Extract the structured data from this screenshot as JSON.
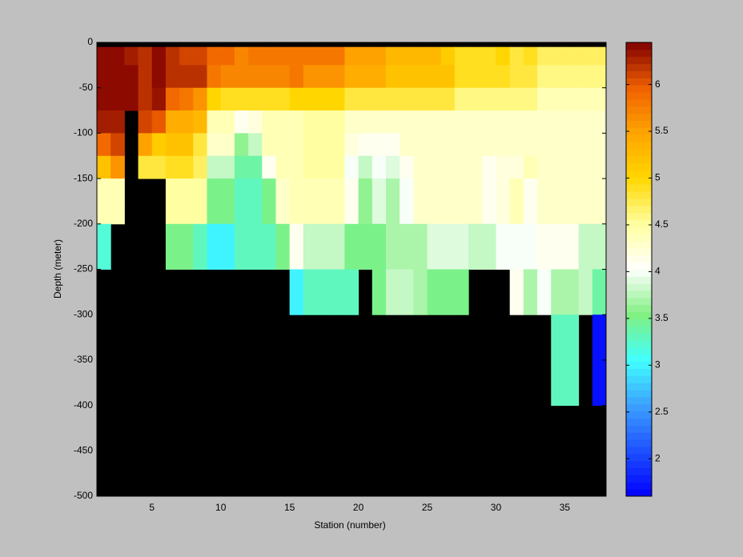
{
  "chart_data": {
    "type": "heatmap",
    "xlabel": "Station (number)",
    "ylabel": "Depth (meter)",
    "xlim": [
      1,
      38
    ],
    "ylim": [
      -500,
      0
    ],
    "xticks": [
      5,
      10,
      15,
      20,
      25,
      30,
      35
    ],
    "yticks": [
      0,
      -50,
      -100,
      -150,
      -200,
      -250,
      -300,
      -350,
      -400,
      -450,
      -500
    ],
    "clim": [
      1.6,
      6.45
    ],
    "cticks": [
      2,
      2.5,
      3,
      3.5,
      4,
      4.5,
      5,
      5.5,
      6
    ],
    "colormap": [
      "#0000ff",
      "#1e50ff",
      "#3ca0ff",
      "#40ffff",
      "#80f080",
      "#ffffff",
      "#ffffa0",
      "#ffd700",
      "#ffa500",
      "#f06000",
      "#800000"
    ],
    "nan_color": "#000000",
    "x_edges": [
      1,
      2,
      3,
      4,
      5,
      6,
      7,
      8,
      9,
      10,
      11,
      12,
      13,
      14,
      15,
      16,
      17,
      18,
      19,
      20,
      21,
      22,
      23,
      24,
      25,
      26,
      27,
      28,
      29,
      30,
      31,
      32,
      33,
      34,
      35,
      36,
      37,
      38
    ],
    "y_edges": [
      -5,
      -25,
      -50,
      -75,
      -100,
      -125,
      -150,
      -175,
      -200,
      -250,
      -300,
      -350,
      -400
    ],
    "values": [
      [
        6.4,
        6.4,
        6.3,
        6.2,
        6.4,
        6.2,
        6.1,
        6.1,
        5.9,
        5.9,
        5.7,
        5.8,
        5.8,
        5.8,
        5.8,
        5.8,
        5.8,
        5.8,
        5.5,
        5.5,
        5.5,
        5.3,
        5.3,
        5.3,
        5.3,
        5.1,
        4.9,
        4.9,
        4.9,
        5.0,
        4.8,
        4.9,
        4.7,
        4.7,
        4.7,
        4.7,
        4.7
      ],
      [
        6.4,
        6.4,
        6.4,
        6.2,
        6.4,
        6.2,
        6.2,
        6.2,
        5.8,
        5.7,
        5.7,
        5.7,
        5.7,
        5.7,
        5.8,
        5.6,
        5.6,
        5.6,
        5.4,
        5.4,
        5.4,
        5.2,
        5.2,
        5.2,
        5.2,
        5.2,
        4.9,
        4.9,
        4.9,
        4.9,
        4.8,
        4.8,
        4.6,
        4.6,
        4.6,
        4.6,
        4.6
      ],
      [
        6.4,
        6.4,
        6.4,
        6.2,
        6.35,
        5.9,
        5.8,
        5.6,
        5.0,
        4.9,
        4.9,
        4.9,
        4.9,
        4.9,
        5.0,
        5.0,
        5.0,
        5.0,
        4.8,
        4.8,
        4.8,
        4.8,
        4.8,
        4.8,
        4.8,
        4.8,
        4.6,
        4.6,
        4.6,
        4.6,
        4.6,
        4.6,
        4.4,
        4.4,
        4.4,
        4.4,
        4.4
      ],
      [
        6.3,
        6.3,
        null,
        6.1,
        6.0,
        5.4,
        5.4,
        5.3,
        4.4,
        4.4,
        4.1,
        4.2,
        4.4,
        4.4,
        4.4,
        4.5,
        4.5,
        4.5,
        4.3,
        4.3,
        4.3,
        4.3,
        4.3,
        4.3,
        4.3,
        4.3,
        4.3,
        4.3,
        4.3,
        4.3,
        4.3,
        4.3,
        4.3,
        4.3,
        4.3,
        4.3,
        4.3
      ],
      [
        5.9,
        6.1,
        null,
        5.5,
        5.1,
        5.2,
        5.2,
        4.8,
        4.3,
        4.3,
        3.6,
        3.8,
        4.4,
        4.4,
        4.4,
        4.5,
        4.5,
        4.5,
        4.2,
        4.1,
        4.1,
        4.1,
        4.3,
        4.3,
        4.3,
        4.3,
        4.3,
        4.3,
        4.3,
        4.3,
        4.3,
        4.3,
        4.3,
        4.3,
        4.3,
        4.3,
        4.3
      ],
      [
        5.2,
        5.6,
        null,
        4.8,
        4.8,
        4.9,
        4.9,
        4.7,
        3.8,
        3.8,
        3.4,
        3.4,
        4.1,
        4.4,
        4.4,
        4.5,
        4.5,
        4.5,
        4.0,
        3.8,
        4.0,
        3.9,
        4.1,
        4.3,
        4.3,
        4.3,
        4.3,
        4.3,
        4.1,
        4.2,
        4.2,
        4.4,
        4.3,
        4.3,
        4.3,
        4.3,
        4.3
      ],
      [
        4.4,
        4.4,
        null,
        null,
        null,
        4.5,
        4.5,
        4.5,
        3.5,
        3.5,
        3.3,
        3.3,
        3.5,
        4.3,
        4.4,
        4.4,
        4.4,
        4.4,
        4.1,
        3.6,
        3.9,
        3.7,
        4.0,
        4.3,
        4.3,
        4.3,
        4.3,
        4.3,
        4.1,
        4.2,
        4.4,
        4.1,
        4.3,
        4.3,
        4.3,
        4.3,
        4.3
      ],
      [
        4.4,
        4.4,
        null,
        null,
        null,
        4.5,
        4.5,
        4.5,
        3.5,
        3.5,
        3.3,
        3.3,
        3.5,
        4.3,
        4.4,
        4.4,
        4.4,
        4.4,
        4.1,
        3.6,
        3.9,
        3.7,
        4.0,
        4.3,
        4.3,
        4.3,
        4.3,
        4.3,
        4.1,
        4.2,
        4.4,
        4.1,
        4.3,
        4.3,
        4.3,
        4.3,
        4.3
      ],
      [
        3.2,
        null,
        null,
        null,
        null,
        3.5,
        3.5,
        3.3,
        3.0,
        3.0,
        3.3,
        3.3,
        3.3,
        3.5,
        4.1,
        3.8,
        3.8,
        3.8,
        3.5,
        3.5,
        3.5,
        3.7,
        3.7,
        3.7,
        3.9,
        3.9,
        3.9,
        3.8,
        3.8,
        4.0,
        4.0,
        4.0,
        4.1,
        4.1,
        4.1,
        3.8,
        3.8
      ],
      [
        null,
        null,
        null,
        null,
        null,
        null,
        null,
        null,
        null,
        null,
        null,
        null,
        null,
        null,
        3.0,
        3.3,
        3.3,
        3.3,
        3.3,
        null,
        3.5,
        3.8,
        3.8,
        3.7,
        3.5,
        3.5,
        3.5,
        null,
        null,
        null,
        4.1,
        3.7,
        4.0,
        3.7,
        3.7,
        3.8,
        3.4
      ],
      [
        null,
        null,
        null,
        null,
        null,
        null,
        null,
        null,
        null,
        null,
        null,
        null,
        null,
        null,
        null,
        null,
        null,
        null,
        null,
        null,
        null,
        null,
        null,
        null,
        null,
        null,
        null,
        null,
        null,
        null,
        null,
        null,
        null,
        3.3,
        3.3,
        null,
        1.7
      ],
      [
        null,
        null,
        null,
        null,
        null,
        null,
        null,
        null,
        null,
        null,
        null,
        null,
        null,
        null,
        null,
        null,
        null,
        null,
        null,
        null,
        null,
        null,
        null,
        null,
        null,
        null,
        null,
        null,
        null,
        null,
        null,
        null,
        null,
        3.3,
        3.3,
        null,
        1.7
      ]
    ]
  }
}
